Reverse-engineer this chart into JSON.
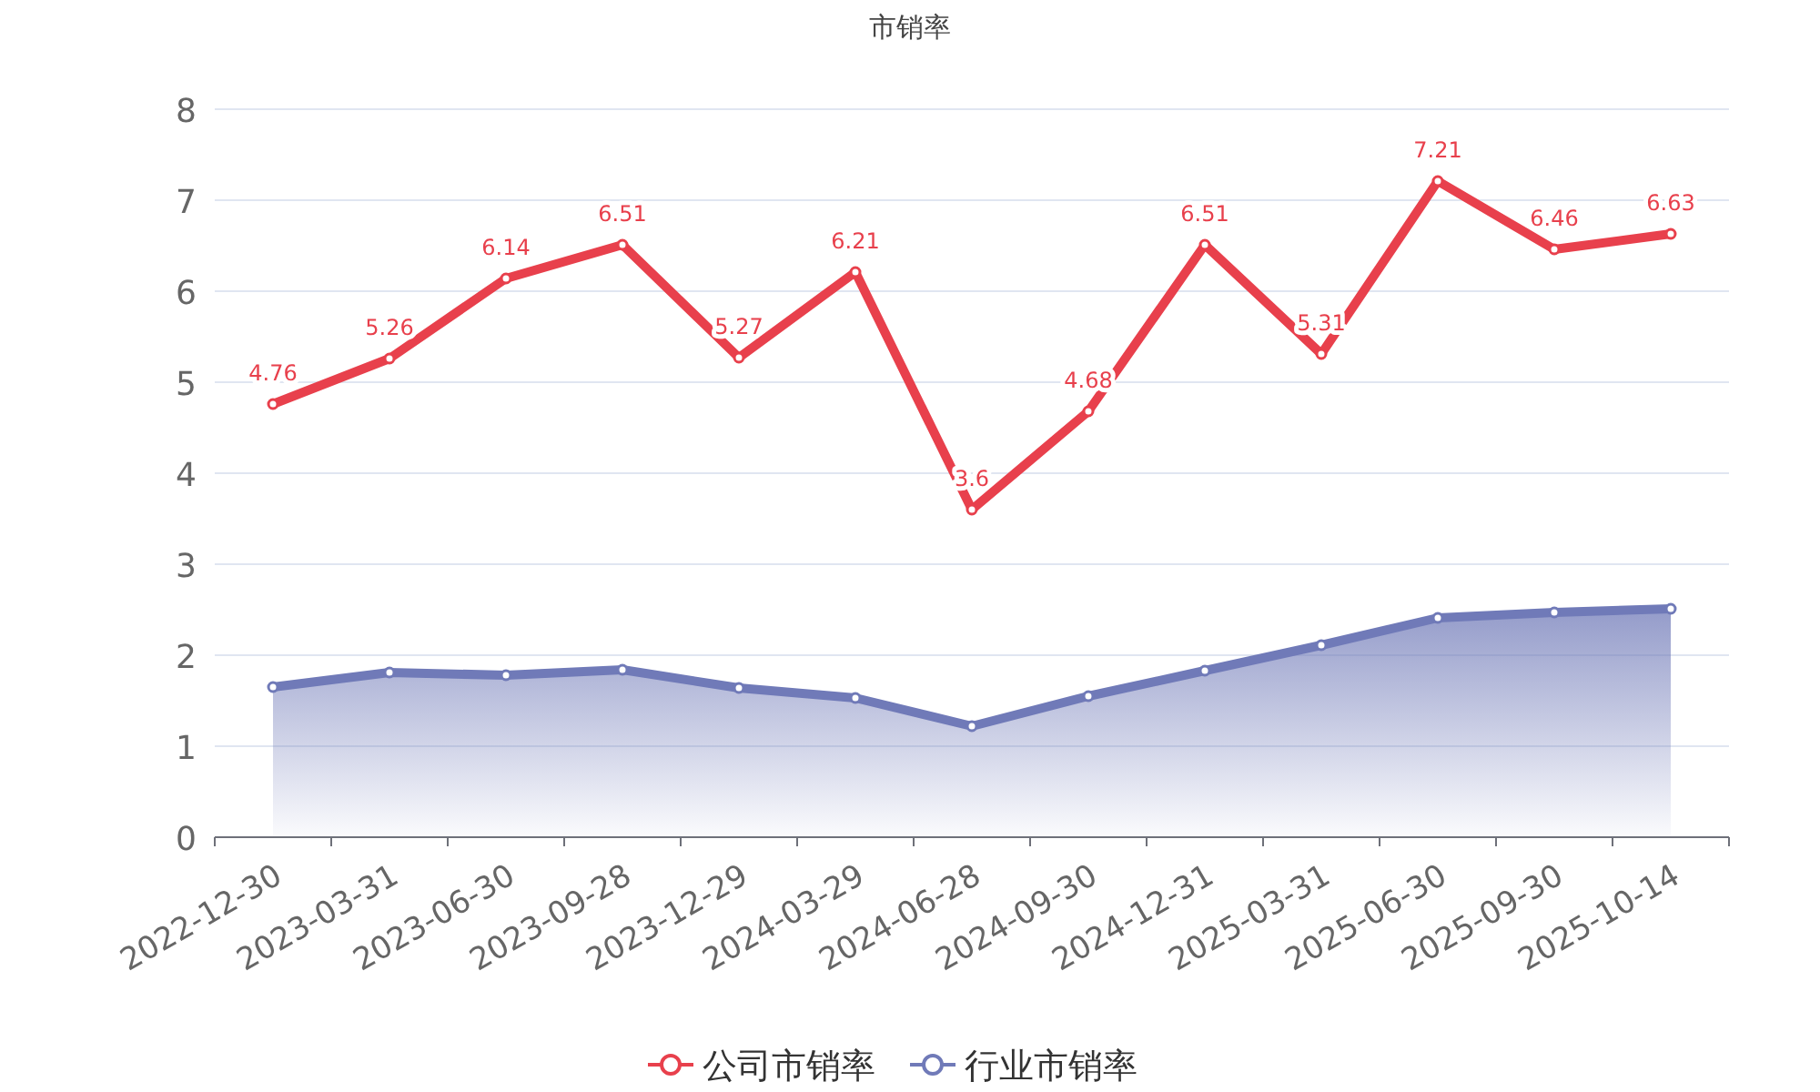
{
  "chart_data": {
    "type": "line",
    "title": "市销率",
    "categories": [
      "2022-12-30",
      "2023-03-31",
      "2023-06-30",
      "2023-09-28",
      "2023-12-29",
      "2024-03-29",
      "2024-06-28",
      "2024-09-30",
      "2024-12-31",
      "2025-03-31",
      "2025-06-30",
      "2025-09-30",
      "2025-10-14"
    ],
    "series": [
      {
        "name": "公司市销率",
        "color": "#e8404c",
        "values": [
          4.76,
          5.26,
          6.14,
          6.51,
          5.27,
          6.21,
          3.6,
          4.68,
          6.51,
          5.31,
          7.21,
          6.46,
          6.63
        ],
        "value_labels": [
          "4.76",
          "5.26",
          "6.14",
          "6.51",
          "5.27",
          "6.21",
          "3.6",
          "4.68",
          "6.51",
          "5.31",
          "7.21",
          "6.46",
          "6.63"
        ]
      },
      {
        "name": "行业市销率",
        "type": "area",
        "color": "#707ab8",
        "values": [
          1.65,
          1.81,
          1.78,
          1.84,
          1.64,
          1.53,
          1.22,
          1.55,
          1.83,
          2.11,
          2.41,
          2.47,
          2.51
        ]
      }
    ],
    "ylim": [
      0,
      8
    ],
    "yticks": [
      0,
      1,
      2,
      3,
      4,
      5,
      6,
      7,
      8
    ],
    "grid": "y",
    "legend": "bottom",
    "marker": "circle"
  }
}
